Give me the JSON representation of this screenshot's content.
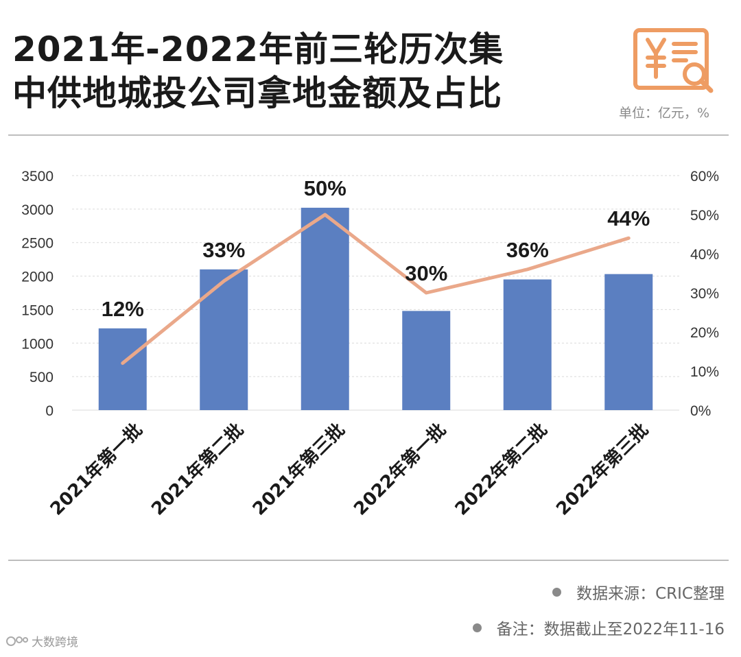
{
  "header": {
    "title_line1": "2021年-2022年前三轮历次集",
    "title_line2": "中供地城投公司拿地金额及占比",
    "unit": "单位：亿元，%",
    "logo_icon": "yen-receipt-magnifier-icon"
  },
  "colors": {
    "bar": "#5b7fc1",
    "line": "#eaa88a",
    "logo": "#ee9c63",
    "grid": "#d9d9d9"
  },
  "chart_data": {
    "type": "bar+line",
    "title": "2021年-2022年前三轮历次集中供地城投公司拿地金额及占比",
    "categories": [
      "2021年第一批",
      "2021年第二批",
      "2021年第三批",
      "2022年第一批",
      "2022年第二批",
      "2022年第三批"
    ],
    "series": [
      {
        "type": "bar",
        "axis": "left",
        "values": [
          1220,
          2100,
          3020,
          1480,
          1950,
          2030
        ]
      },
      {
        "type": "line",
        "axis": "right",
        "values": [
          12,
          33,
          50,
          30,
          36,
          44
        ],
        "labels": [
          "12%",
          "33%",
          "50%",
          "30%",
          "36%",
          "44%"
        ]
      }
    ],
    "y_left": {
      "range": [
        0,
        3500
      ],
      "ticks": [
        "0",
        "500",
        "1000",
        "1500",
        "2000",
        "2500",
        "3000",
        "3500"
      ]
    },
    "y_right": {
      "range": [
        0,
        60
      ],
      "ticks": [
        "0%",
        "10%",
        "20%",
        "30%",
        "40%",
        "50%",
        "60%"
      ]
    },
    "grid": true
  },
  "footer": {
    "source": "数据来源：CRIC整理",
    "note": "备注：数据截止至2022年11-16",
    "watermark": "大数跨境"
  }
}
